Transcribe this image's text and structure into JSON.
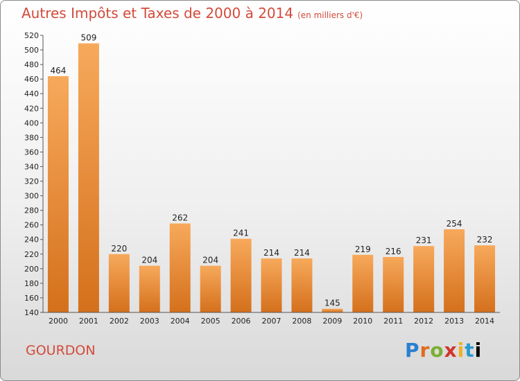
{
  "header": {
    "title": "Autres Impôts et Taxes de 2000 à 2014",
    "unit": "(en milliers d'€)"
  },
  "footer": {
    "city": "GOURDON",
    "logo": [
      "P",
      "r",
      "o",
      "x",
      "i",
      "t",
      "i"
    ]
  },
  "colors": {
    "title": "#d34a3a",
    "bar_light": "#f7a95b",
    "bar_dark": "#d4701c"
  },
  "chart_data": {
    "type": "bar",
    "title": "Autres Impôts et Taxes de 2000 à 2014",
    "subtitle": "(en milliers d'€)",
    "xlabel": "",
    "ylabel": "",
    "categories": [
      "2000",
      "2001",
      "2002",
      "2003",
      "2004",
      "2005",
      "2006",
      "2007",
      "2008",
      "2009",
      "2010",
      "2011",
      "2012",
      "2013",
      "2014"
    ],
    "values": [
      464,
      509,
      220,
      204,
      262,
      204,
      241,
      214,
      214,
      145,
      219,
      216,
      231,
      254,
      232
    ],
    "ylim": [
      140,
      520
    ],
    "yticks": [
      140,
      160,
      180,
      200,
      220,
      240,
      260,
      280,
      300,
      320,
      340,
      360,
      380,
      400,
      420,
      440,
      460,
      480,
      500,
      520
    ],
    "grid": false,
    "legend": "none"
  }
}
